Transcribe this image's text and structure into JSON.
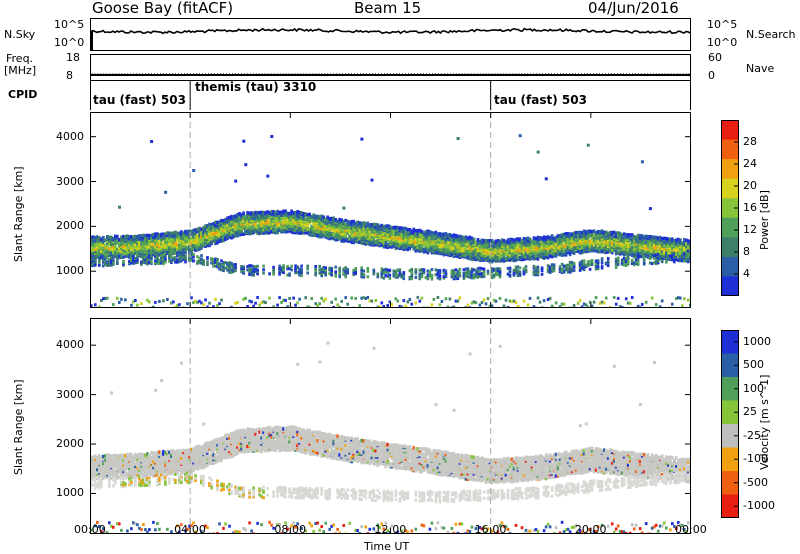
{
  "header": {
    "radar": "Goose Bay (fitACF)",
    "beam": "Beam 15",
    "date": "04/Jun/2016"
  },
  "strips": {
    "nsky_label": "N.Sky",
    "nsearch_label": "N.Search",
    "nsky_ticks": [
      "10^5",
      "10^0"
    ],
    "nsearch_ticks": [
      "10^5",
      "10^0"
    ],
    "freq_label_1": "Freq.",
    "freq_label_2": "[MHz]",
    "freq_ticks": [
      "18",
      "8"
    ],
    "nave_label": "Nave",
    "nave_ticks": [
      "60",
      "0"
    ],
    "cpid_label": "CPID",
    "cpid_segments": [
      {
        "label": "tau (fast) 503",
        "start_hour": 0
      },
      {
        "label": "themis (tau) 3310",
        "start_hour": 4
      },
      {
        "label": "tau (fast) 503",
        "start_hour": 16
      }
    ]
  },
  "chart_data": [
    {
      "type": "heatmap",
      "title": "",
      "xlabel": "Time UT",
      "ylabel": "Slant Range [km]",
      "x_ticks": [
        "00:00",
        "04:00",
        "08:00",
        "12:00",
        "16:00",
        "20:00",
        "00:00"
      ],
      "xlim_hours": [
        0,
        24
      ],
      "y_ticks": [
        1000,
        2000,
        3000,
        4000
      ],
      "ylim": [
        180,
        4550
      ],
      "colorbar_label": "Power [dB]",
      "colorbar_ticks": [
        "4",
        "8",
        "12",
        "16",
        "20",
        "24",
        "28"
      ],
      "colorbar_range": [
        0,
        30
      ],
      "colors": [
        "#1f2fd6",
        "#2a5fa6",
        "#3e7f6b",
        "#4fa05a",
        "#86c43a",
        "#d6d21e",
        "#f0a010",
        "#f06010",
        "#e81e12"
      ],
      "bands": [
        {
          "name": "main",
          "hours": [
            0,
            2,
            4,
            6,
            8,
            10,
            12,
            14,
            16,
            18,
            20,
            22,
            24
          ],
          "range_km": [
            1560,
            1600,
            1700,
            2100,
            2150,
            1950,
            1800,
            1650,
            1480,
            1560,
            1720,
            1600,
            1480
          ]
        },
        {
          "name": "lower",
          "hours": [
            0,
            2,
            4,
            6,
            8,
            10,
            12,
            14,
            16,
            18,
            20,
            22,
            24
          ],
          "range_km": [
            1240,
            1280,
            1350,
            1050,
            1050,
            1020,
            980,
            960,
            1000,
            1050,
            1180,
            1280,
            1380
          ]
        }
      ]
    },
    {
      "type": "heatmap",
      "title": "",
      "xlabel": "Time UT",
      "ylabel": "Slant Range [km]",
      "x_ticks": [
        "00:00",
        "04:00",
        "08:00",
        "12:00",
        "16:00",
        "20:00",
        "00:00"
      ],
      "xlim_hours": [
        0,
        24
      ],
      "y_ticks": [
        1000,
        2000,
        3000,
        4000
      ],
      "ylim": [
        180,
        4550
      ],
      "colorbar_label": "Velocity [m s^-1]",
      "colorbar_ticks": [
        "1000",
        "500",
        "100",
        "25",
        "-25",
        "-100",
        "-500",
        "-1000"
      ],
      "colors": [
        "#1f2fd6",
        "#2a5fa6",
        "#4f9f5a",
        "#86c43a",
        "#bebebe",
        "#f0a010",
        "#f06010",
        "#e81e12"
      ],
      "bands": [
        {
          "name": "main",
          "hours": [
            0,
            2,
            4,
            6,
            8,
            10,
            12,
            14,
            16,
            18,
            20,
            22,
            24
          ],
          "range_km": [
            1560,
            1600,
            1700,
            2100,
            2150,
            1950,
            1800,
            1650,
            1480,
            1560,
            1720,
            1600,
            1480
          ]
        },
        {
          "name": "lower",
          "hours": [
            0,
            2,
            4,
            6,
            8,
            10,
            12,
            14,
            16,
            18,
            20,
            22,
            24
          ],
          "range_km": [
            1240,
            1280,
            1350,
            1050,
            1050,
            1020,
            980,
            960,
            1000,
            1050,
            1180,
            1280,
            1380
          ]
        }
      ]
    }
  ]
}
